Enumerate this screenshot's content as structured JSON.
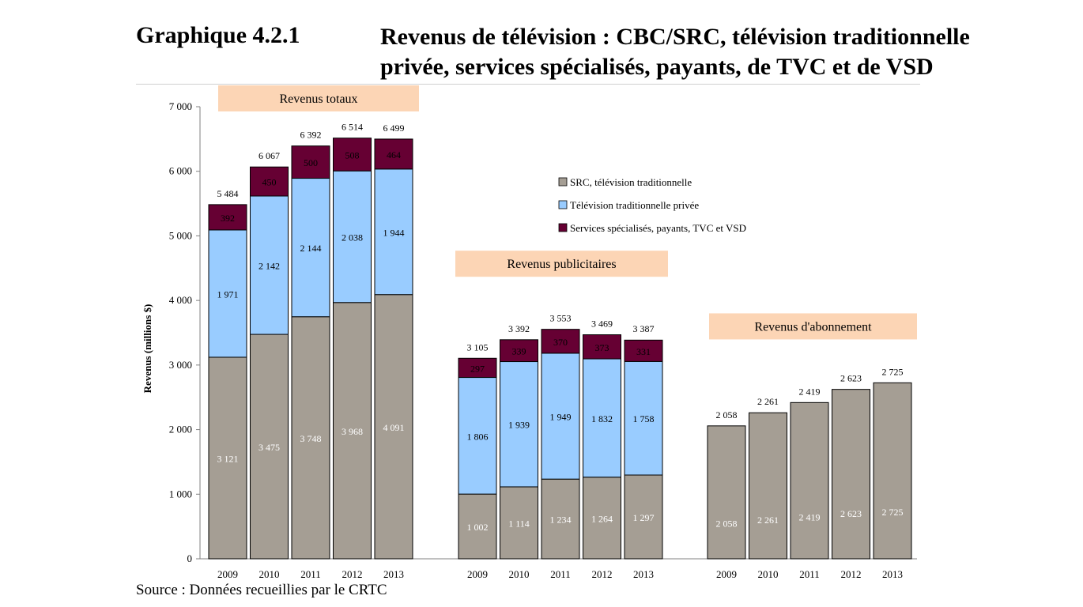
{
  "header": {
    "number": "Graphique 4.2.1",
    "title_line1": "Revenus de télévision : CBC/SRC, télévision traditionnelle",
    "title_line2": "privée, services spécialisés, payants, de TVC et de VSD"
  },
  "source": "Source : Données recueillies par le CRTC",
  "chart_data": {
    "type": "bar",
    "stacked": true,
    "ylabel": "Revenus (millions $)",
    "ylim": [
      0,
      7000
    ],
    "yticks": [
      "0",
      "1 000",
      "2 000",
      "3 000",
      "4 000",
      "5 000",
      "6 000",
      "7 000"
    ],
    "legend_position": "center-right",
    "legend": [
      {
        "name": "SRC, télévision traditionnelle",
        "color": "#a59e94"
      },
      {
        "name": "Télévision traditionnelle privée",
        "color": "#99ccff"
      },
      {
        "name": "Services spécialisés, payants, TVC et VSD",
        "color": "#660033"
      }
    ],
    "groups": [
      {
        "label": "Revenus totaux",
        "categories": [
          "2009",
          "2010",
          "2011",
          "2012",
          "2013"
        ],
        "series": [
          {
            "values": [
              3121,
              3475,
              3748,
              3968,
              4091
            ],
            "labels": [
              "3 121",
              "3 475",
              "3 748",
              "3 968",
              "4 091"
            ]
          },
          {
            "values": [
              1971,
              2142,
              2144,
              2038,
              1944
            ],
            "labels": [
              "1 971",
              "2 142",
              "2 144",
              "2 038",
              "1 944"
            ]
          },
          {
            "values": [
              392,
              450,
              500,
              508,
              464
            ],
            "labels": [
              "392",
              "450",
              "500",
              "508",
              "464"
            ]
          }
        ],
        "totals": [
          5484,
          6067,
          6392,
          6514,
          6499
        ],
        "total_labels": [
          "5 484",
          "6 067",
          "6 392",
          "6 514",
          "6 499"
        ]
      },
      {
        "label": "Revenus publicitaires",
        "categories": [
          "2009",
          "2010",
          "2011",
          "2012",
          "2013"
        ],
        "series": [
          {
            "values": [
              1002,
              1114,
              1234,
              1264,
              1297
            ],
            "labels": [
              "1 002",
              "1 114",
              "1 234",
              "1 264",
              "1 297"
            ]
          },
          {
            "values": [
              1806,
              1939,
              1949,
              1832,
              1758
            ],
            "labels": [
              "1 806",
              "1 939",
              "1 949",
              "1 832",
              "1 758"
            ]
          },
          {
            "values": [
              297,
              339,
              370,
              373,
              331
            ],
            "labels": [
              "297",
              "339",
              "370",
              "373",
              "331"
            ]
          }
        ],
        "totals": [
          3105,
          3392,
          3553,
          3469,
          3387
        ],
        "total_labels": [
          "3 105",
          "3 392",
          "3 553",
          "3 469",
          "3 387"
        ]
      },
      {
        "label": "Revenus d'abonnement",
        "categories": [
          "2009",
          "2010",
          "2011",
          "2012",
          "2013"
        ],
        "series": [
          {
            "values": [
              2058,
              2261,
              2419,
              2623,
              2725
            ],
            "labels": [
              "2 058",
              "2 261",
              "2 419",
              "2 623",
              "2 725"
            ]
          }
        ],
        "totals": [
          2058,
          2261,
          2419,
          2623,
          2725
        ],
        "total_labels": [
          "2 058",
          "2 261",
          "2 419",
          "2 623",
          "2 725"
        ]
      }
    ]
  }
}
